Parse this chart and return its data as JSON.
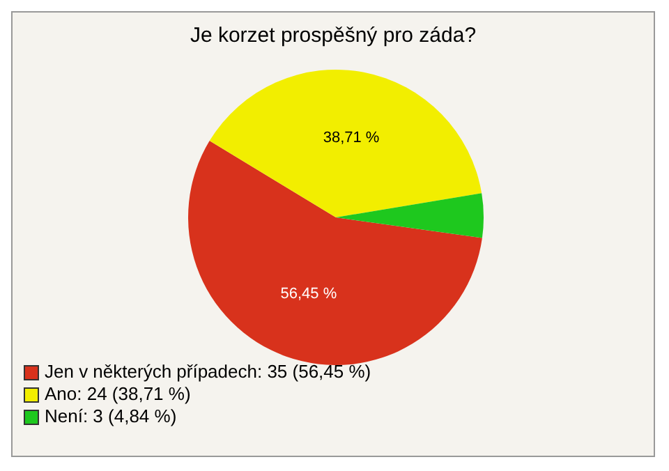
{
  "chart_data": {
    "type": "pie",
    "title": "Je korzet prospěšný pro záda?",
    "categories": [
      "Jen v některých případech: 35 (56,45 %)",
      "Ano: 24 (38,71 %)",
      "Není: 3 (4,84 %)"
    ],
    "values": [
      56.45,
      38.71,
      4.84
    ],
    "colors": [
      "#d8321c",
      "#f2ee00",
      "#1ec81e"
    ],
    "value_labels": [
      "56,45 %",
      "38,71 %",
      null
    ],
    "legend": "bottom left"
  }
}
